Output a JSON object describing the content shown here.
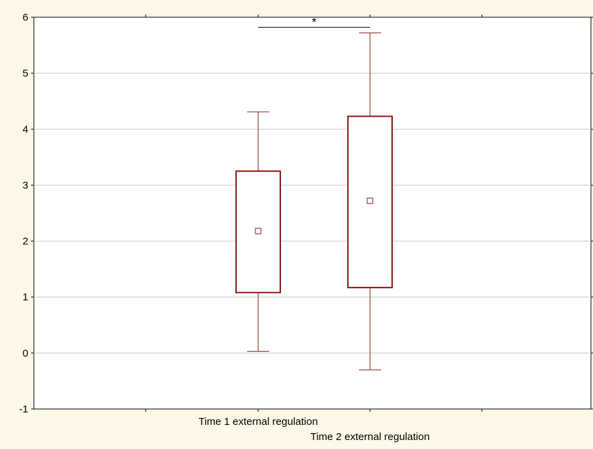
{
  "chart_data": {
    "type": "boxplot",
    "categories": [
      "Time 1 external regulation",
      "Time 2 external regulation"
    ],
    "boxes": [
      {
        "category": "Time 1 external regulation",
        "whisker_low": 0.03,
        "q1": 1.08,
        "center": 2.18,
        "q3": 3.25,
        "whisker_high": 4.31
      },
      {
        "category": "Time 2 external regulation",
        "whisker_low": -0.3,
        "q1": 1.17,
        "center": 2.72,
        "q3": 4.23,
        "whisker_high": 5.72
      }
    ],
    "ylim": [
      -1,
      6
    ],
    "yticks": [
      "-1",
      "0",
      "1",
      "2",
      "3",
      "4",
      "5",
      "6"
    ],
    "grid": true,
    "annotations": [
      {
        "text": "*",
        "from_category": 0,
        "to_category": 1,
        "y": 5.82
      }
    ],
    "colors": {
      "box": "#8b1a1a",
      "grid": "#c8c8c8",
      "plot_background": "#ffffff",
      "page_background": "#fdf8e8"
    }
  }
}
